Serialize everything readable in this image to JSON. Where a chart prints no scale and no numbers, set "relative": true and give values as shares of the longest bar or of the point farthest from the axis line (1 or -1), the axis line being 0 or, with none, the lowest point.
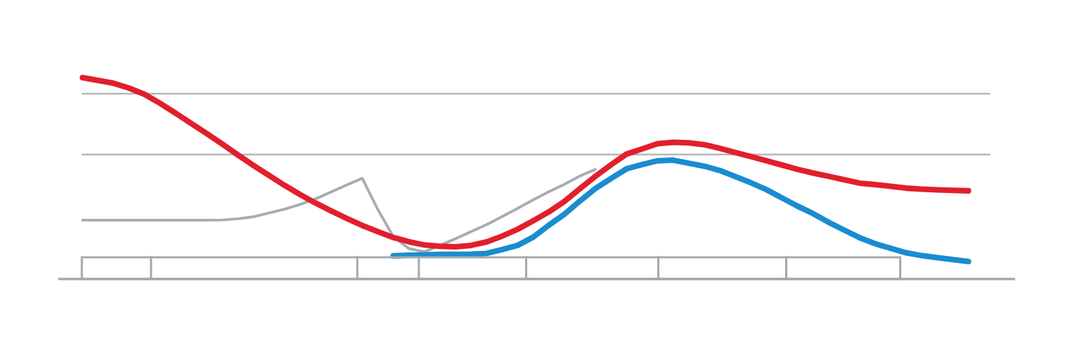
{
  "chart_data": {
    "type": "line",
    "relative": true,
    "categories": [
      null,
      null,
      null,
      null,
      null,
      null,
      null,
      null,
      null,
      null,
      null,
      null,
      null,
      null,
      null,
      null,
      null,
      null,
      null,
      null,
      null,
      null,
      null,
      null,
      null,
      null,
      null,
      null,
      null,
      null,
      null,
      null,
      null,
      null,
      null,
      null,
      null,
      null,
      null,
      null,
      null,
      null,
      null,
      null,
      null,
      null,
      null,
      null,
      null,
      null,
      null,
      null,
      null,
      null,
      null,
      null,
      null,
      null
    ],
    "series": [
      {
        "color": "#a7acaf",
        "values": [
          0.292,
          0.292,
          0.292,
          0.292,
          0.292,
          0.292,
          0.292,
          0.292,
          0.292,
          0.293,
          0.299,
          0.309,
          0.328,
          0.347,
          0.37,
          0.398,
          0.432,
          0.467,
          0.5,
          0.345,
          0.21,
          0.151,
          0.135,
          0.167,
          0.2,
          0.235,
          0.27,
          0.31,
          0.351,
          0.393,
          0.433,
          0.47,
          0.511,
          0.544,
          null,
          null,
          null,
          null,
          null,
          null,
          null,
          null,
          null,
          null,
          null,
          null,
          null,
          null,
          null,
          null,
          null,
          null,
          null,
          null,
          null,
          null,
          null,
          null
        ]
      },
      {
        "color": "#1a8ccf",
        "values": [
          null,
          null,
          null,
          null,
          null,
          null,
          null,
          null,
          null,
          null,
          null,
          null,
          null,
          null,
          null,
          null,
          null,
          null,
          null,
          null,
          0.115,
          0.118,
          0.12,
          0.122,
          0.122,
          0.123,
          0.127,
          0.146,
          0.167,
          0.208,
          0.267,
          0.321,
          0.387,
          0.449,
          0.499,
          0.547,
          0.568,
          0.587,
          0.59,
          0.575,
          0.56,
          0.539,
          0.509,
          0.478,
          0.444,
          0.403,
          0.362,
          0.325,
          0.282,
          0.243,
          0.205,
          0.175,
          0.152,
          0.13,
          0.116,
          0.106,
          0.096,
          0.087
        ]
      },
      {
        "color": "#e21f2c",
        "values": [
          1.0,
          0.986,
          0.972,
          0.948,
          0.917,
          0.872,
          0.823,
          0.772,
          0.722,
          0.67,
          0.616,
          0.564,
          0.514,
          0.465,
          0.419,
          0.377,
          0.338,
          0.301,
          0.266,
          0.235,
          0.206,
          0.185,
          0.169,
          0.162,
          0.16,
          0.167,
          0.184,
          0.213,
          0.247,
          0.289,
          0.333,
          0.385,
          0.448,
          0.51,
          0.567,
          0.62,
          0.646,
          0.672,
          0.679,
          0.676,
          0.667,
          0.649,
          0.628,
          0.608,
          0.587,
          0.566,
          0.545,
          0.526,
          0.51,
          0.493,
          0.476,
          0.469,
          0.46,
          0.451,
          0.446,
          0.443,
          0.44,
          0.438
        ]
      }
    ],
    "ref_lines": [
      {
        "axis": "y",
        "value": 0.92,
        "color": "#b3b7ba"
      },
      {
        "axis": "y",
        "value": 0.618,
        "color": "#b3b7ba"
      }
    ]
  }
}
